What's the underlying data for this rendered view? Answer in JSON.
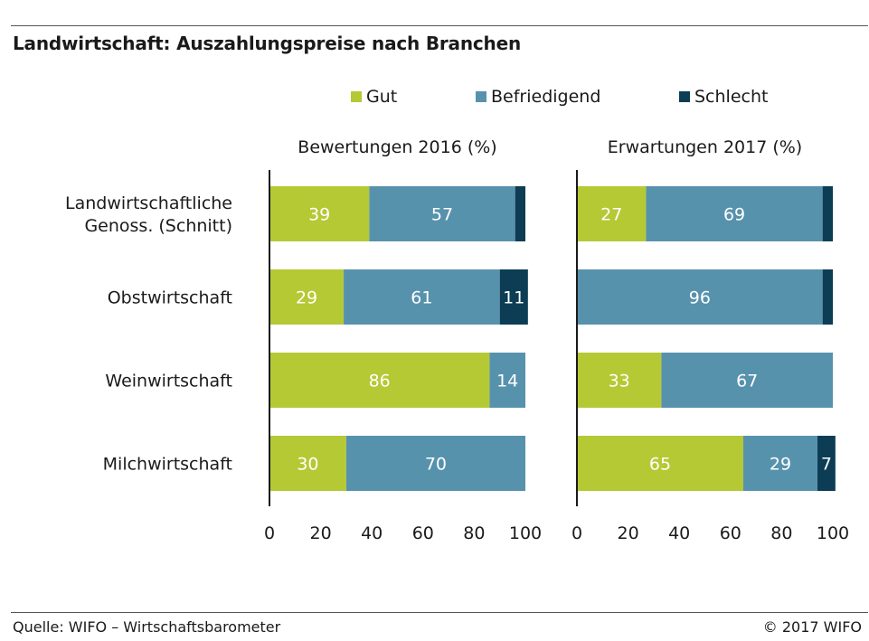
{
  "header": {
    "title": "Landwirtschaft: Auszahlungspreise nach Branchen"
  },
  "legend": {
    "items": [
      {
        "label": "Gut",
        "color": "#b5c934"
      },
      {
        "label": "Befriedigend",
        "color": "#5792ad"
      },
      {
        "label": "Schlecht",
        "color": "#0c3d55"
      }
    ]
  },
  "footer": {
    "source": "Quelle: WIFO – Wirtschaftsbarometer",
    "copyright": "© 2017 WIFO"
  },
  "chart_data": {
    "type": "bar",
    "orientation": "horizontal",
    "stacked": true,
    "categories": [
      "Landwirtschaftliche Genoss. (Schnitt)",
      "Obstwirtschaft",
      "Weinwirtschaft",
      "Milchwirtschaft"
    ],
    "category_lines": [
      [
        "Landwirtschaftliche",
        "Genoss. (Schnitt)"
      ],
      [
        "Obstwirtschaft"
      ],
      [
        "Weinwirtschaft"
      ],
      [
        "Milchwirtschaft"
      ]
    ],
    "xlim": [
      0,
      100
    ],
    "xticks": [
      0,
      20,
      40,
      60,
      80,
      100
    ],
    "panels": [
      {
        "title": "Bewertungen 2016 (%)",
        "series": [
          {
            "name": "Gut",
            "values": [
              39,
              29,
              86,
              30
            ]
          },
          {
            "name": "Befriedigend",
            "values": [
              57,
              61,
              14,
              70
            ]
          },
          {
            "name": "Schlecht",
            "values": [
              4,
              11,
              0,
              0
            ]
          }
        ],
        "labels": [
          [
            "39",
            "57",
            ""
          ],
          [
            "29",
            "61",
            "11"
          ],
          [
            "86",
            "14",
            ""
          ],
          [
            "30",
            "70",
            ""
          ]
        ]
      },
      {
        "title": "Erwartungen 2017 (%)",
        "series": [
          {
            "name": "Gut",
            "values": [
              27,
              0,
              33,
              65
            ]
          },
          {
            "name": "Befriedigend",
            "values": [
              69,
              96,
              67,
              29
            ]
          },
          {
            "name": "Schlecht",
            "values": [
              4,
              4,
              0,
              7
            ]
          }
        ],
        "labels": [
          [
            "27",
            "69",
            ""
          ],
          [
            "",
            "96",
            ""
          ],
          [
            "33",
            "67",
            ""
          ],
          [
            "65",
            "29",
            "7"
          ]
        ]
      }
    ]
  }
}
